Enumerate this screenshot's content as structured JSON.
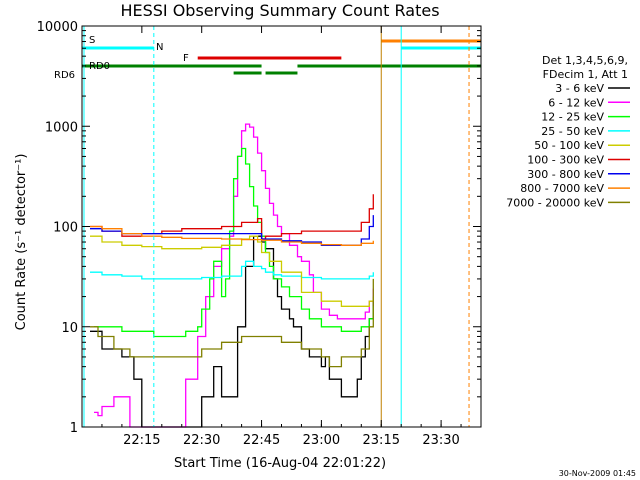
{
  "chart_data": {
    "type": "line",
    "title": "HESSI Observing Summary Count Rates",
    "xlabel": "Start Time (16-Aug-04 22:01:22)",
    "ylabel": "Count Rate (s⁻¹ detector⁻¹)",
    "yscale": "log",
    "ylim": [
      1,
      10000
    ],
    "xlim_minutes_after_22_00": [
      0,
      100
    ],
    "x_tick_labels": [
      "22:15",
      "22:30",
      "22:45",
      "23:00",
      "23:15",
      "23:30"
    ],
    "x_tick_minutes": [
      15,
      30,
      45,
      60,
      75,
      90
    ],
    "y_tick_labels": [
      "1",
      "10",
      "100",
      "1000",
      "10000"
    ],
    "y_ticks": [
      1,
      10,
      100,
      1000,
      10000
    ],
    "legend_header": [
      "Det 1,3,4,5,6,9,",
      "FDecim 1, Att 1"
    ],
    "legend_placement": "right",
    "series": [
      {
        "name": "3 - 6 keV",
        "color": "#000000",
        "x": [
          2,
          5,
          10,
          13,
          15,
          20,
          25,
          28,
          30,
          32,
          33,
          35,
          37,
          39,
          41,
          43,
          44,
          45,
          46,
          48,
          49,
          50,
          52,
          53,
          55,
          56,
          57,
          58,
          59,
          60,
          61,
          62,
          64,
          65,
          67,
          68,
          69,
          70,
          71,
          72,
          73
        ],
        "y": [
          9,
          6,
          5,
          3,
          1,
          1,
          1,
          1,
          2,
          2,
          4,
          2,
          2,
          10,
          40,
          80,
          80,
          70,
          60,
          30,
          20,
          15,
          12,
          10,
          6,
          6,
          5,
          5,
          5,
          4,
          5,
          3,
          3,
          2,
          2,
          2,
          3,
          5,
          8,
          12,
          20
        ]
      },
      {
        "name": "6 - 12 keV",
        "color": "#ff00ff",
        "x": [
          3,
          4,
          5,
          8,
          12,
          15,
          22,
          26,
          29,
          31,
          33,
          35,
          37,
          38,
          39,
          40,
          41,
          42,
          43,
          44,
          45,
          46,
          47,
          48,
          49,
          50,
          52,
          54,
          55,
          57,
          58,
          60,
          62,
          64,
          66,
          68,
          70,
          71,
          72,
          73
        ],
        "y": [
          1.4,
          1.3,
          1.6,
          2,
          1,
          1,
          1,
          3,
          8,
          20,
          40,
          60,
          80,
          200,
          500,
          900,
          1050,
          980,
          780,
          540,
          360,
          240,
          170,
          130,
          100,
          85,
          65,
          50,
          45,
          33,
          22,
          15,
          13,
          12,
          12,
          12,
          12,
          14,
          18,
          24
        ]
      },
      {
        "name": "12 - 25 keV",
        "color": "#00ff00",
        "x": [
          3,
          6,
          10,
          15,
          18,
          21,
          26,
          29,
          30,
          32,
          33,
          35,
          36,
          37,
          38,
          39,
          40,
          41,
          42,
          43,
          44,
          45,
          46,
          47,
          48,
          50,
          52,
          55,
          57,
          60,
          62,
          65,
          68,
          70,
          72,
          73
        ],
        "y": [
          10,
          10,
          9,
          9,
          8,
          8,
          9,
          10,
          15,
          30,
          45,
          20,
          30,
          90,
          300,
          500,
          600,
          420,
          250,
          160,
          110,
          80,
          55,
          40,
          30,
          25,
          20,
          15,
          12,
          10,
          10,
          9,
          9,
          10,
          12,
          16
        ]
      },
      {
        "name": "25 - 50 keV",
        "color": "#00ffff",
        "x": [
          2,
          5,
          10,
          15,
          20,
          25,
          30,
          35,
          40,
          41,
          43,
          45,
          46,
          48,
          50,
          55,
          60,
          65,
          70,
          72,
          73
        ],
        "y": [
          35,
          33,
          32,
          30,
          30,
          30,
          31,
          32,
          40,
          45,
          40,
          38,
          35,
          33,
          32,
          31,
          30,
          30,
          30,
          32,
          35
        ]
      },
      {
        "name": "50 - 100 keV",
        "color": "#cccc00",
        "x": [
          2,
          5,
          10,
          15,
          20,
          25,
          30,
          35,
          40,
          42,
          44,
          45,
          47,
          50,
          55,
          60,
          65,
          70,
          72,
          73
        ],
        "y": [
          80,
          70,
          65,
          63,
          60,
          60,
          62,
          65,
          75,
          80,
          70,
          55,
          45,
          35,
          22,
          18,
          16,
          16,
          18,
          20
        ]
      },
      {
        "name": "100 - 300 keV",
        "color": "#dd0000",
        "x": [
          2,
          5,
          10,
          15,
          20,
          25,
          30,
          35,
          40,
          44,
          45,
          46,
          50,
          55,
          60,
          65,
          70,
          72,
          73
        ],
        "y": [
          100,
          90,
          80,
          85,
          90,
          95,
          95,
          100,
          110,
          120,
          75,
          80,
          85,
          90,
          90,
          90,
          110,
          150,
          210
        ]
      },
      {
        "name": "300 - 800 keV",
        "color": "#0000ee",
        "x": [
          2,
          5,
          10,
          15,
          20,
          25,
          30,
          35,
          40,
          44,
          45,
          50,
          55,
          60,
          65,
          70,
          72,
          73
        ],
        "y": [
          95,
          90,
          85,
          85,
          85,
          85,
          85,
          85,
          85,
          85,
          75,
          72,
          70,
          65,
          65,
          75,
          100,
          130
        ]
      },
      {
        "name": "800 - 7000 keV",
        "color": "#ff8000",
        "x": [
          2,
          5,
          10,
          15,
          20,
          25,
          30,
          35,
          40,
          45,
          50,
          55,
          60,
          65,
          70,
          73
        ],
        "y": [
          100,
          95,
          85,
          80,
          78,
          76,
          76,
          75,
          74,
          73,
          70,
          68,
          66,
          65,
          68,
          72
        ]
      },
      {
        "name": "7000 - 20000 keV",
        "color": "#808000",
        "x": [
          2,
          4,
          8,
          12,
          15,
          18,
          20,
          25,
          30,
          35,
          40,
          45,
          50,
          55,
          60,
          62,
          65,
          68,
          70,
          72,
          73
        ],
        "y": [
          10,
          8,
          6,
          5,
          5,
          5,
          5,
          5,
          6,
          7,
          8,
          8,
          7,
          6,
          5,
          4,
          5,
          5,
          6,
          10,
          30
        ]
      }
    ],
    "annotations": [
      {
        "label": "S",
        "color": "#ff8000"
      },
      {
        "label": "N",
        "color": "#00ffff"
      },
      {
        "label": "F",
        "color": "#dd0000"
      },
      {
        "label": "RD0",
        "color": "#008000"
      },
      {
        "label": "RD6",
        "color": "#008000"
      }
    ],
    "footer_timestamp": "30-Nov-2009 01:45"
  }
}
